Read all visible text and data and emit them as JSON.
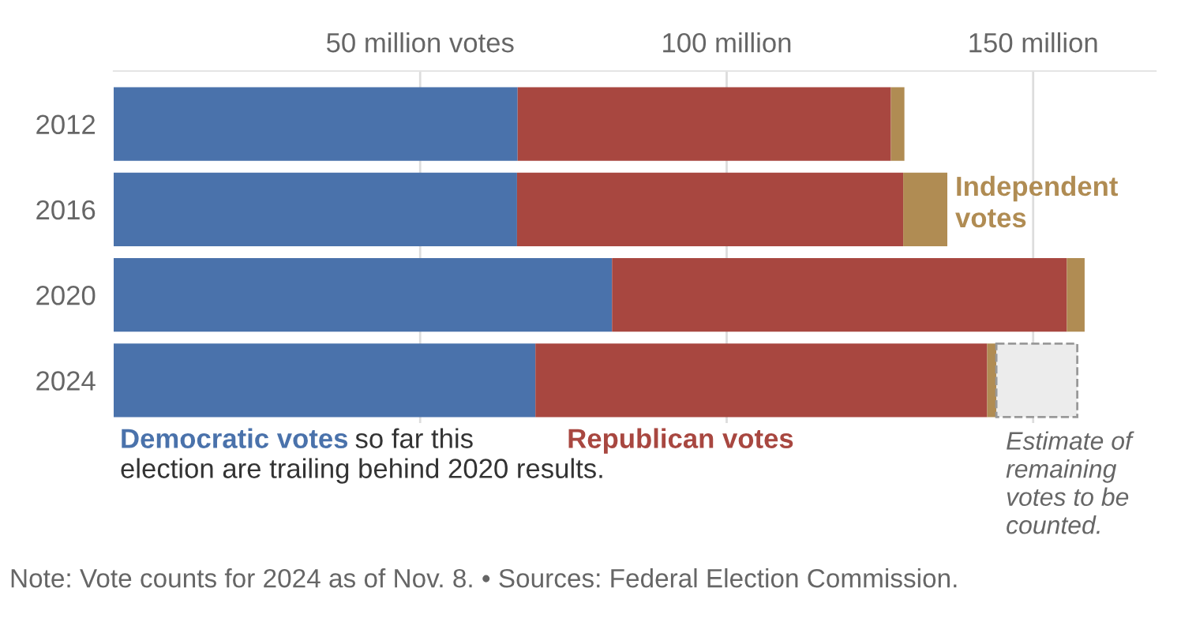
{
  "chart_data": {
    "type": "bar",
    "orientation": "horizontal",
    "stacked": true,
    "categories": [
      "2012",
      "2016",
      "2020",
      "2024"
    ],
    "series": [
      {
        "name": "Democratic votes",
        "color": "#4a72ab",
        "values": [
          65.9,
          65.8,
          81.3,
          68.8
        ]
      },
      {
        "name": "Republican votes",
        "color": "#a84740",
        "values": [
          60.9,
          63.0,
          74.2,
          73.7
        ]
      },
      {
        "name": "Independent votes",
        "color": "#b08c53",
        "values": [
          2.2,
          7.2,
          2.9,
          1.5
        ]
      },
      {
        "name": "Estimate of remaining votes to be counted.",
        "color": "#ececec",
        "line_style": "dashed",
        "values": [
          null,
          null,
          null,
          13.2
        ]
      }
    ],
    "xticks": [
      {
        "value": 50,
        "label": "50 million votes"
      },
      {
        "value": 100,
        "label": "100 million"
      },
      {
        "value": 150,
        "label": "150 million"
      }
    ],
    "xlim": [
      0,
      170
    ],
    "grid": "x",
    "annotations": [
      "so far this election are trailing behind 2020 results.",
      "Note: Vote counts for 2024 as of Nov. 8. • Sources: Federal Election Commission."
    ]
  }
}
